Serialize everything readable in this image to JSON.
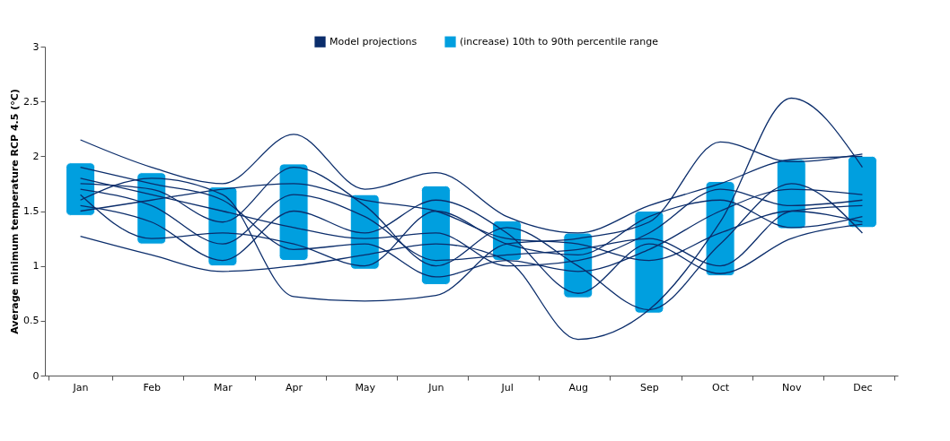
{
  "chart_data": {
    "type": "bar",
    "ylabel": "Average minimum temperature  RCP 4.5 (°C)",
    "categories": [
      "Jan",
      "Feb",
      "Mar",
      "Apr",
      "May",
      "Jun",
      "Jul",
      "Aug",
      "Sep",
      "Oct",
      "Nov",
      "Dec"
    ],
    "ylim": [
      0,
      3
    ],
    "yticks": [
      0,
      0.5,
      1,
      1.5,
      2,
      2.5,
      3
    ],
    "grid": false,
    "legend": "top",
    "series": [
      {
        "type": "line",
        "name": "Model projections",
        "color": "#0b2d6b",
        "values": [
          2.15,
          1.9,
          1.75,
          2.2,
          1.7,
          1.85,
          1.45,
          1.3,
          1.55,
          1.75,
          1.97,
          2.0
        ]
      },
      {
        "type": "line",
        "color": "#0b2d6b",
        "values": [
          1.27,
          1.1,
          0.95,
          1.0,
          1.1,
          1.2,
          1.05,
          0.33,
          0.6,
          1.4,
          2.53,
          1.9
        ]
      },
      {
        "type": "line",
        "color": "#0b2d6b",
        "values": [
          1.6,
          1.8,
          1.65,
          0.72,
          0.68,
          0.73,
          1.2,
          1.25,
          1.4,
          2.13,
          1.95,
          2.02
        ]
      },
      {
        "type": "line",
        "color": "#0b2d6b",
        "values": [
          1.75,
          1.7,
          1.4,
          1.9,
          1.55,
          1.0,
          1.35,
          1.0,
          0.6,
          1.2,
          1.75,
          1.3
        ]
      },
      {
        "type": "line",
        "color": "#0b2d6b",
        "values": [
          1.55,
          1.4,
          1.05,
          1.5,
          1.3,
          1.6,
          1.3,
          0.75,
          1.2,
          0.93,
          1.25,
          1.38
        ]
      },
      {
        "type": "line",
        "color": "#0b2d6b",
        "values": [
          1.7,
          1.55,
          1.2,
          1.65,
          1.45,
          1.05,
          1.1,
          1.15,
          1.25,
          1.0,
          1.5,
          1.55
        ]
      },
      {
        "type": "line",
        "color": "#0b2d6b",
        "values": [
          1.65,
          1.25,
          1.3,
          1.2,
          1.0,
          1.5,
          1.2,
          1.1,
          1.45,
          1.6,
          1.35,
          1.45
        ]
      },
      {
        "type": "line",
        "color": "#0b2d6b",
        "values": [
          1.9,
          1.75,
          1.6,
          1.15,
          1.2,
          0.9,
          1.05,
          0.95,
          1.15,
          1.5,
          1.7,
          1.65
        ]
      },
      {
        "type": "line",
        "color": "#0b2d6b",
        "values": [
          1.5,
          1.6,
          1.7,
          1.75,
          1.6,
          1.5,
          1.25,
          1.2,
          1.05,
          1.3,
          1.5,
          1.4
        ]
      },
      {
        "type": "line",
        "color": "#0b2d6b",
        "values": [
          1.8,
          1.65,
          1.5,
          1.35,
          1.25,
          1.3,
          1.0,
          1.05,
          1.3,
          1.7,
          1.55,
          1.6
        ]
      },
      {
        "name": "(increase) 10th to 90th percentile range",
        "color": "#009fdf",
        "base": [
          1.46,
          1.2,
          1.0,
          1.05,
          0.97,
          0.83,
          1.05,
          0.71,
          0.57,
          0.91,
          1.34,
          1.35
        ],
        "values": [
          0.48,
          0.65,
          0.72,
          0.88,
          0.68,
          0.9,
          0.36,
          0.59,
          0.93,
          0.86,
          0.63,
          0.65
        ]
      }
    ]
  }
}
